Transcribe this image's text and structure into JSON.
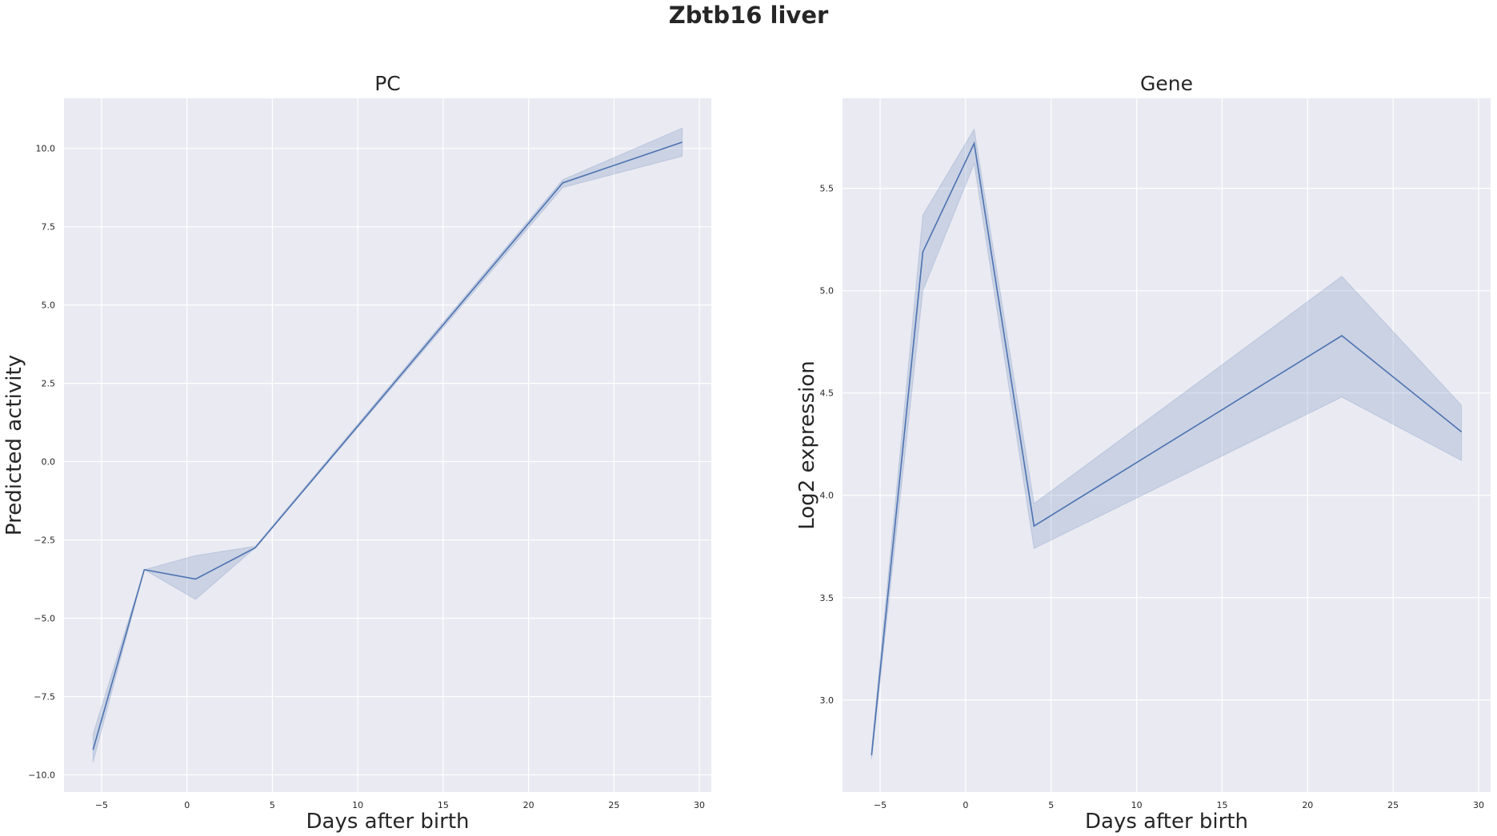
{
  "figure": {
    "suptitle": "Zbtb16 liver"
  },
  "chart_data": [
    {
      "type": "line",
      "title": "PC",
      "xlabel": "Days after birth",
      "ylabel": "Predicted activity",
      "xlim": [
        -7.2,
        30.7
      ],
      "ylim": [
        -10.55,
        11.6
      ],
      "xticks": [
        -5,
        0,
        5,
        10,
        15,
        20,
        25,
        30
      ],
      "yticks": [
        -10.0,
        -7.5,
        -5.0,
        -2.5,
        0.0,
        2.5,
        5.0,
        7.5,
        10.0
      ],
      "ytick_labels": [
        "−10.0",
        "−7.5",
        "−5.0",
        "−2.5",
        "0.0",
        "2.5",
        "5.0",
        "7.5",
        "10.0"
      ],
      "xtick_labels": [
        "−5",
        "0",
        "5",
        "10",
        "15",
        "20",
        "25",
        "30"
      ],
      "grid": true,
      "series": [
        {
          "x": [
            -5.5,
            -2.5,
            0.5,
            4,
            22,
            29
          ],
          "y": [
            -9.2,
            -3.45,
            -3.75,
            -2.75,
            8.9,
            10.2
          ],
          "ci_low": [
            -9.6,
            -3.45,
            -4.4,
            -2.75,
            8.75,
            9.75
          ],
          "ci_high": [
            -8.7,
            -3.45,
            -3.0,
            -2.7,
            9.0,
            10.65
          ],
          "color": "#4c72b0"
        }
      ]
    },
    {
      "type": "line",
      "title": "Gene",
      "xlabel": "Days after birth",
      "ylabel": "Log2 expression",
      "xlim": [
        -7.2,
        30.7
      ],
      "ylim": [
        2.55,
        5.94
      ],
      "xticks": [
        -5,
        0,
        5,
        10,
        15,
        20,
        25,
        30
      ],
      "yticks": [
        3.0,
        3.5,
        4.0,
        4.5,
        5.0,
        5.5
      ],
      "ytick_labels": [
        "3.0",
        "3.5",
        "4.0",
        "4.5",
        "5.0",
        "5.5"
      ],
      "xtick_labels": [
        "−5",
        "0",
        "5",
        "10",
        "15",
        "20",
        "25",
        "30"
      ],
      "grid": true,
      "series": [
        {
          "x": [
            -5.5,
            -2.5,
            0.5,
            4,
            22,
            29
          ],
          "y": [
            2.73,
            5.19,
            5.72,
            3.85,
            4.78,
            4.31
          ],
          "ci_low": [
            2.71,
            5.0,
            5.62,
            3.74,
            4.48,
            4.17
          ],
          "ci_high": [
            2.76,
            5.37,
            5.79,
            3.96,
            5.07,
            4.44
          ],
          "color": "#4c72b0"
        }
      ]
    }
  ]
}
